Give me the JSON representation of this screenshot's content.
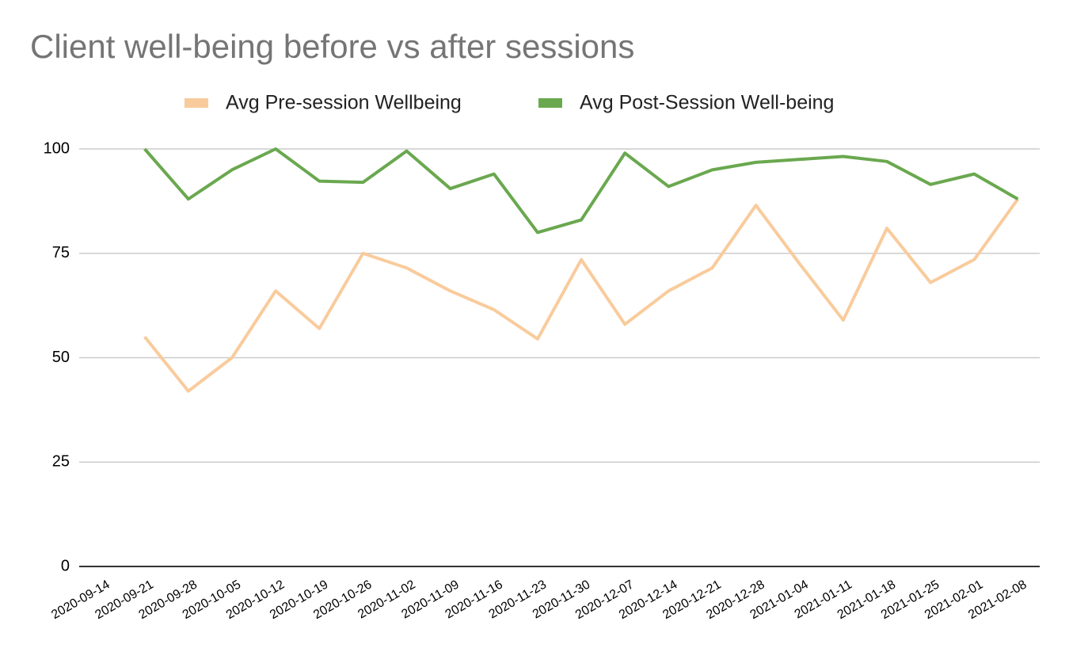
{
  "chart_data": {
    "type": "line",
    "title": "Client well-being before vs after sessions",
    "categories": [
      "2020-09-14",
      "2020-09-21",
      "2020-09-28",
      "2020-10-05",
      "2020-10-12",
      "2020-10-19",
      "2020-10-26",
      "2020-11-02",
      "2020-11-09",
      "2020-11-16",
      "2020-11-23",
      "2020-11-30",
      "2020-12-07",
      "2020-12-14",
      "2020-12-21",
      "2020-12-28",
      "2021-01-04",
      "2021-01-11",
      "2021-01-18",
      "2021-01-25",
      "2021-02-01",
      "2021-02-08"
    ],
    "series": [
      {
        "name": "Avg Pre-session Wellbeing",
        "color": "#f9cb9c",
        "values": [
          null,
          55,
          42,
          50,
          66,
          57,
          75,
          71.5,
          66,
          61.5,
          54.5,
          73.5,
          58,
          66,
          71.5,
          86.5,
          72.5,
          59,
          81,
          68,
          73.5,
          88
        ]
      },
      {
        "name": "Avg Post-Session Well-being",
        "color": "#6aa84f",
        "values": [
          null,
          100,
          88,
          95,
          100,
          92.3,
          92,
          99.5,
          90.5,
          94,
          80,
          83,
          99,
          91,
          95,
          96.8,
          97.5,
          98.2,
          97,
          91.5,
          94,
          88
        ]
      }
    ],
    "ylim": [
      0,
      100
    ],
    "yticks": [
      0,
      25,
      50,
      75,
      100
    ],
    "grid": true,
    "legend": "top"
  }
}
